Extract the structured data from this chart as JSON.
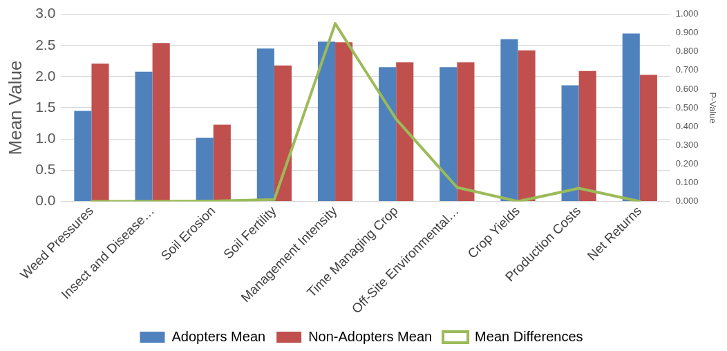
{
  "chart_data": {
    "type": "bar",
    "ylabel": "Mean Value",
    "y2label": "P-Value",
    "categories": [
      "Weed Pressures",
      "Insect and Disease…",
      "Soil Erosion",
      "Soil Fertility",
      "Management Intensity",
      "Time Managing Crop",
      "Off-Site Environmental…",
      "Crop Yields",
      "Production Costs",
      "Net Returns"
    ],
    "series": [
      {
        "name": "Adopters Mean",
        "color": "#4f81bd",
        "values": [
          1.45,
          2.08,
          1.02,
          2.45,
          2.56,
          2.15,
          2.15,
          2.6,
          1.86,
          2.69
        ]
      },
      {
        "name": "Non-Adopters Mean",
        "color": "#c0504d",
        "values": [
          2.21,
          2.54,
          1.23,
          2.18,
          2.55,
          2.23,
          2.23,
          2.42,
          2.09,
          2.03
        ]
      },
      {
        "name": "Mean Differences",
        "type": "line",
        "axis": "y2",
        "color": "#9bbb59",
        "values": [
          0.0,
          0.0,
          0.002,
          0.01,
          0.95,
          0.44,
          0.075,
          0.0,
          0.07,
          0.0
        ]
      }
    ],
    "ylim": [
      0,
      3
    ],
    "yticks": [
      {
        "value": 0,
        "label": "0.0"
      },
      {
        "value": 0.5,
        "label": "0.5"
      },
      {
        "value": 1,
        "label": "1.0"
      },
      {
        "value": 1.5,
        "label": "1.5"
      },
      {
        "value": 2,
        "label": "2.0"
      },
      {
        "value": 2.5,
        "label": "2.5"
      },
      {
        "value": 3,
        "label": "3.0"
      }
    ],
    "y2lim": [
      0,
      1
    ],
    "y2ticks": [
      {
        "value": 0,
        "label": "0.000"
      },
      {
        "value": 0.1,
        "label": "0.100"
      },
      {
        "value": 0.2,
        "label": "0.200"
      },
      {
        "value": 0.3,
        "label": "0.300"
      },
      {
        "value": 0.4,
        "label": "0.400"
      },
      {
        "value": 0.5,
        "label": "0.500"
      },
      {
        "value": 0.6,
        "label": "0.600"
      },
      {
        "value": 0.7,
        "label": "0.700"
      },
      {
        "value": 0.8,
        "label": "0.800"
      },
      {
        "value": 0.9,
        "label": "0.900"
      },
      {
        "value": 1,
        "label": "1.000"
      }
    ],
    "grid": "y",
    "legend": "bottom",
    "marker": "none",
    "line_style": "solid"
  }
}
